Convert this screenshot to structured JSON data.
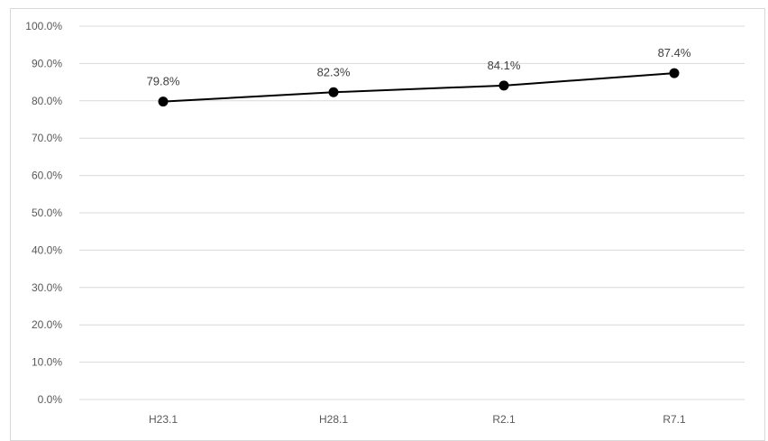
{
  "chart_data": {
    "type": "line",
    "categories": [
      "H23.1",
      "H28.1",
      "R2.1",
      "R7.1"
    ],
    "series": [
      {
        "values": [
          79.8,
          82.3,
          84.1,
          87.4
        ],
        "data_labels": [
          "79.8%",
          "82.3%",
          "84.1%",
          "87.4%"
        ]
      }
    ],
    "y_ticks": [
      "0.0%",
      "10.0%",
      "20.0%",
      "30.0%",
      "40.0%",
      "50.0%",
      "60.0%",
      "70.0%",
      "80.0%",
      "90.0%",
      "100.0%"
    ],
    "ylim": [
      0,
      100
    ],
    "grid": true,
    "legend": "none",
    "colors": {
      "line": "#000000",
      "marker": "#000000",
      "grid": "#d9d9d9",
      "tick_text": "#595959",
      "label_text": "#404040"
    }
  }
}
